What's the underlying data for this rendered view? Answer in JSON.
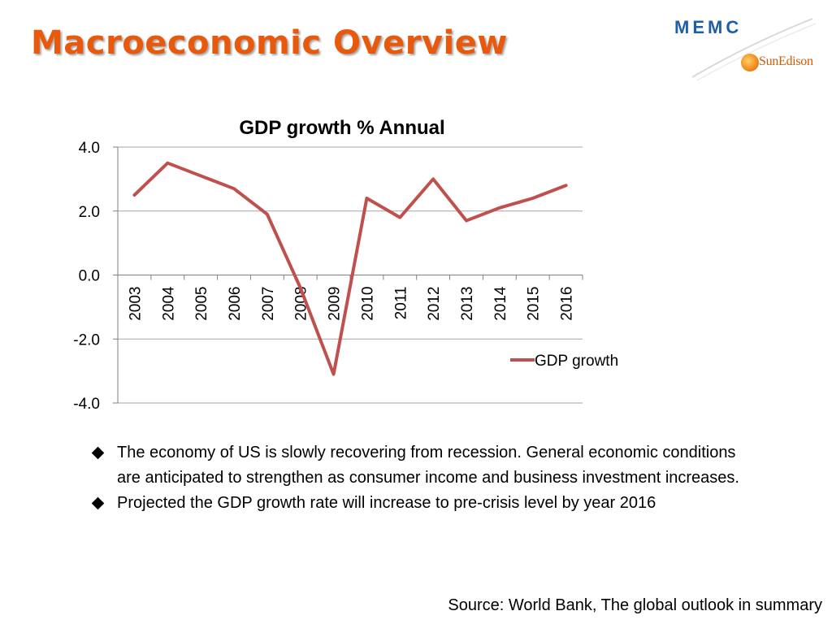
{
  "slide": {
    "title": "Macroeconomic Overview",
    "source": "Source: World Bank, The global outlook in summary"
  },
  "logos": {
    "memc": "MEMC",
    "sunedison": "SunEdison",
    "memc_color": "#1f5fa8",
    "sunedison_color": "#c95d0a"
  },
  "bullets": [
    "The economy of US is slowly recovering from recession. General economic conditions are anticipated to strengthen as consumer income and business investment increases.",
    "Projected the GDP growth rate will increase to pre-crisis level by year 2016"
  ],
  "colors": {
    "title": "#e8590c",
    "series": "#c0504d",
    "gridline": "#a6a6a6"
  },
  "chart_data": {
    "type": "line",
    "title": "GDP growth % Annual",
    "xlabel": "",
    "ylabel": "",
    "categories": [
      "2003",
      "2004",
      "2005",
      "2006",
      "2007",
      "2008",
      "2009",
      "2010",
      "2011",
      "2012",
      "2013",
      "2014",
      "2015",
      "2016"
    ],
    "series": [
      {
        "name": "GDP growth",
        "values": [
          2.5,
          3.5,
          3.1,
          2.7,
          1.9,
          -0.4,
          -3.1,
          2.4,
          1.8,
          3.0,
          1.7,
          2.1,
          2.4,
          2.8
        ]
      }
    ],
    "ylim": [
      -4.0,
      4.0
    ],
    "yticks": [
      "-4.0",
      "-2.0",
      "0.0",
      "2.0",
      "4.0"
    ],
    "grid": true,
    "legend": "right"
  }
}
